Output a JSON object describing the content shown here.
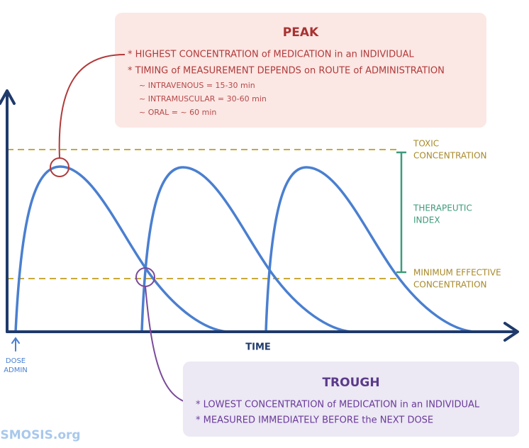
{
  "peak": {
    "title": "PEAK",
    "items": [
      "* HIGHEST CONCENTRATION of MEDICATION in an INDIVIDUAL",
      "* TIMING of MEASUREMENT DEPENDS on ROUTE of ADMINISTRATION"
    ],
    "subitems": [
      "~ INTRAVENOUS = 15-30 min",
      "~ INTRAMUSCULAR = 30-60 min",
      "~ ORAL = ~ 60 min"
    ]
  },
  "labels": {
    "toxic": [
      "TOXIC",
      "CONCENTRATION"
    ],
    "therapeutic": [
      "THERAPEUTIC",
      "INDEX"
    ],
    "minimum": [
      "MINIMUM EFFECTIVE",
      "CONCENTRATION"
    ],
    "x_axis": "TIME",
    "dose": [
      "DOSE",
      "ADMIN"
    ]
  },
  "trough": {
    "title": "TROUGH",
    "items": [
      "* LOWEST CONCENTRATION of MEDICATION in an INDIVIDUAL",
      "* MEASURED IMMEDIATELY BEFORE the NEXT DOSE"
    ]
  },
  "logo": "OSMOSIS.org"
}
